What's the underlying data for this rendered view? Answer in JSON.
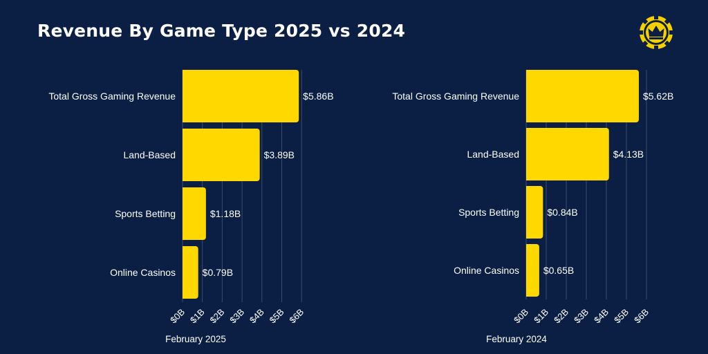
{
  "title": "Revenue By Game Type 2025 vs 2024",
  "logo": {
    "icon": "crown-chip-icon",
    "color": "#f5d000"
  },
  "colors": {
    "background": "#0b1f45",
    "bar": "#ffd800",
    "grid": "#3a4c6e",
    "text": "#ffffff"
  },
  "chart_data": [
    {
      "type": "bar",
      "orientation": "horizontal",
      "caption": "February 2025",
      "categories": [
        "Total Gross Gaming Revenue",
        "Land-Based",
        "Sports Betting",
        "Online Casinos"
      ],
      "values": [
        5.86,
        3.89,
        1.18,
        0.79
      ],
      "value_labels": [
        "$5.86B",
        "$3.89B",
        "$1.18B",
        "$0.79B"
      ],
      "xlim": [
        0,
        6
      ],
      "xticks": [
        "$0B",
        "$1B",
        "$2B",
        "$3B",
        "$4B",
        "$5B",
        "$6B"
      ],
      "grid": true
    },
    {
      "type": "bar",
      "orientation": "horizontal",
      "caption": "February 2024",
      "categories": [
        "Total Gross Gaming Revenue",
        "Land-Based",
        "Sports Betting",
        "Online Casinos"
      ],
      "values": [
        5.62,
        4.13,
        0.84,
        0.65
      ],
      "value_labels": [
        "$5.62B",
        "$4.13B",
        "$0.84B",
        "$0.65B"
      ],
      "xlim": [
        0,
        6
      ],
      "xticks": [
        "$0B",
        "$1B",
        "$2B",
        "$3B",
        "$4B",
        "$5B",
        "$6B"
      ],
      "grid": true
    }
  ]
}
